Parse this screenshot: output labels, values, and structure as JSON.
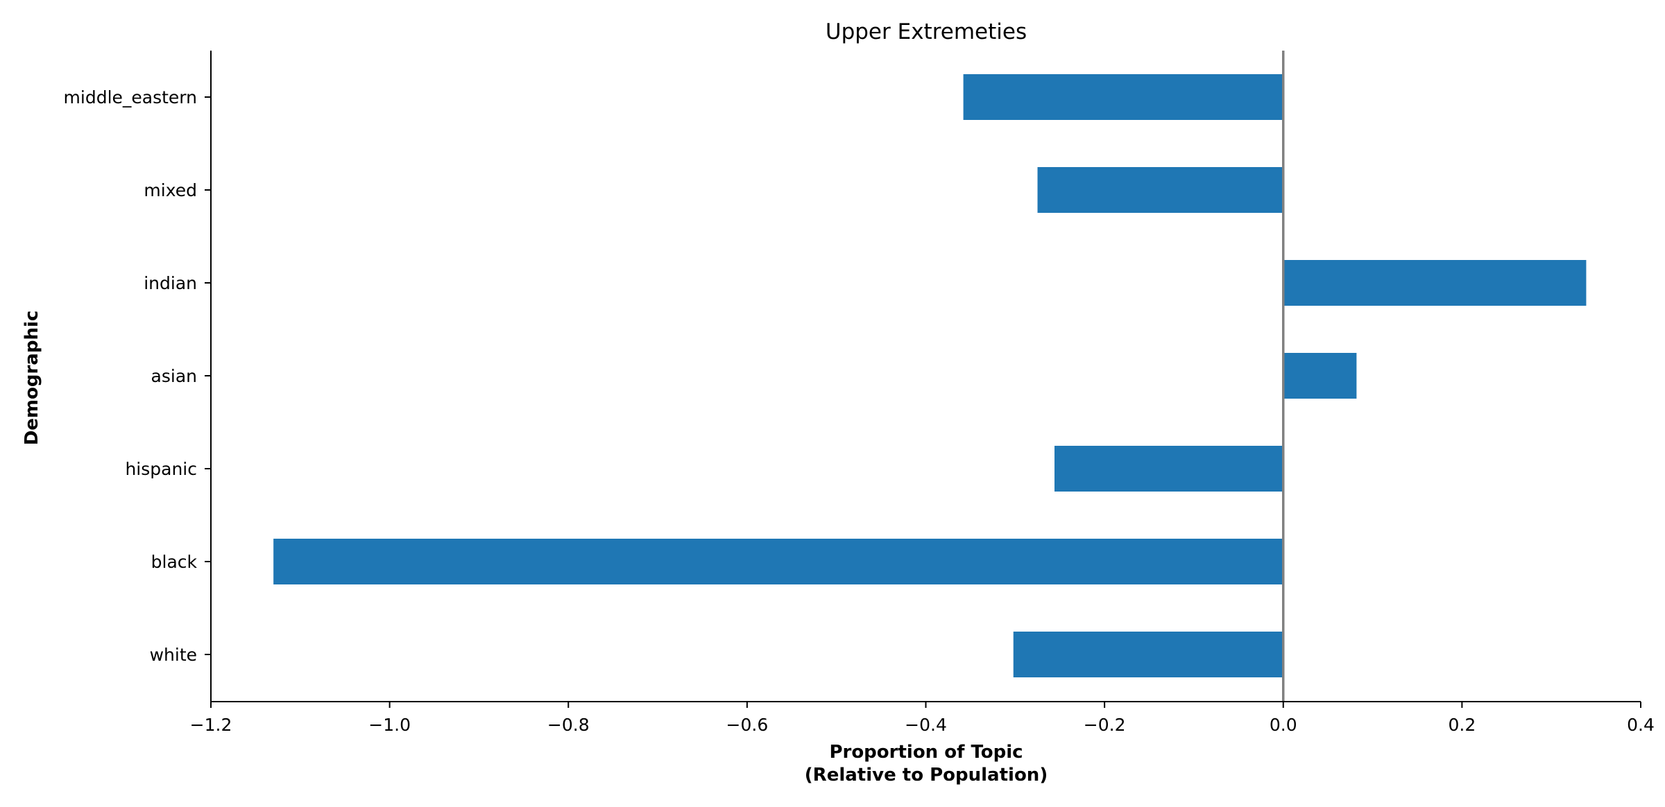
{
  "chart_data": {
    "type": "bar",
    "orientation": "horizontal",
    "title": "Upper Extremeties",
    "xlabel_lines": [
      "Proportion of Topic",
      "(Relative to Population)"
    ],
    "ylabel": "Demographic",
    "categories": [
      "white",
      "black",
      "hispanic",
      "asian",
      "indian",
      "mixed",
      "middle_eastern"
    ],
    "values": [
      -0.302,
      -1.13,
      -0.256,
      0.082,
      0.339,
      -0.275,
      -0.358
    ],
    "xlim": [
      -1.2,
      0.4
    ],
    "x_ticks": [
      -1.2,
      -1.0,
      -0.8,
      -0.6,
      -0.4,
      -0.2,
      0.0,
      0.2,
      0.4
    ],
    "x_tick_labels": [
      "−1.2",
      "−1.0",
      "−0.8",
      "−0.6",
      "−0.4",
      "−0.2",
      "0.0",
      "0.2",
      "0.4"
    ],
    "zero_line": true,
    "grid": false,
    "legend": "none",
    "colors": {
      "bar": "#1f77b4",
      "zero_line": "#808080",
      "axis": "#000000"
    }
  }
}
